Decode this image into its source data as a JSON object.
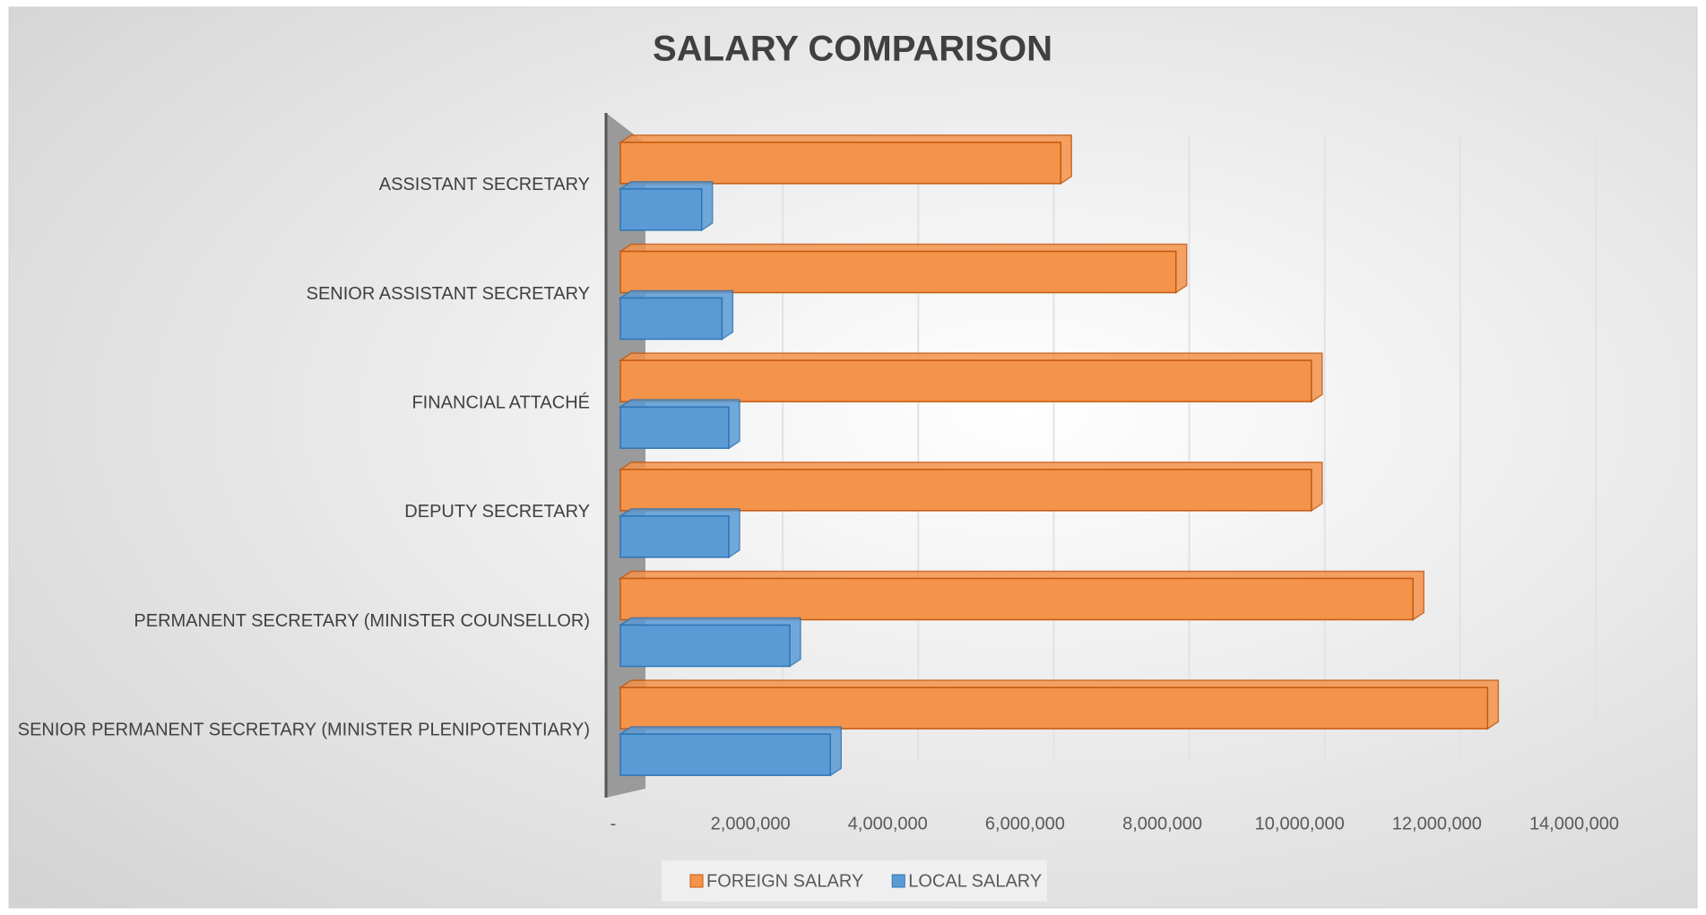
{
  "chart_data": {
    "type": "bar",
    "orientation": "horizontal",
    "title": "SALARY COMPARISON",
    "categories": [
      "ASSISTANT SECRETARY",
      "SENIOR ASSISTANT SECRETARY",
      "FINANCIAL ATTACHÉ",
      "DEPUTY SECRETARY",
      "PERMANENT SECRETARY (MINISTER COUNSELLOR)",
      "SENIOR PERMANENT SECRETARY (MINISTER PLENIPOTENTIARY)"
    ],
    "series": [
      {
        "name": "FOREIGN SALARY",
        "color": "#f4934a",
        "values": [
          6500000,
          8200000,
          10200000,
          10200000,
          11700000,
          12800000
        ]
      },
      {
        "name": "LOCAL SALARY",
        "color": "#5b9bd5",
        "values": [
          1200000,
          1500000,
          1600000,
          1600000,
          2500000,
          3100000
        ]
      }
    ],
    "xlim": [
      0,
      14000000
    ],
    "xticks": [
      {
        "value": 0,
        "label": "-"
      },
      {
        "value": 2000000,
        "label": "2,000,000"
      },
      {
        "value": 4000000,
        "label": "4,000,000"
      },
      {
        "value": 6000000,
        "label": "6,000,000"
      },
      {
        "value": 8000000,
        "label": "8,000,000"
      },
      {
        "value": 10000000,
        "label": "10,000,000"
      },
      {
        "value": 12000000,
        "label": "12,000,000"
      },
      {
        "value": 14000000,
        "label": "14,000,000"
      }
    ],
    "grid": true,
    "legend": "bottom"
  }
}
